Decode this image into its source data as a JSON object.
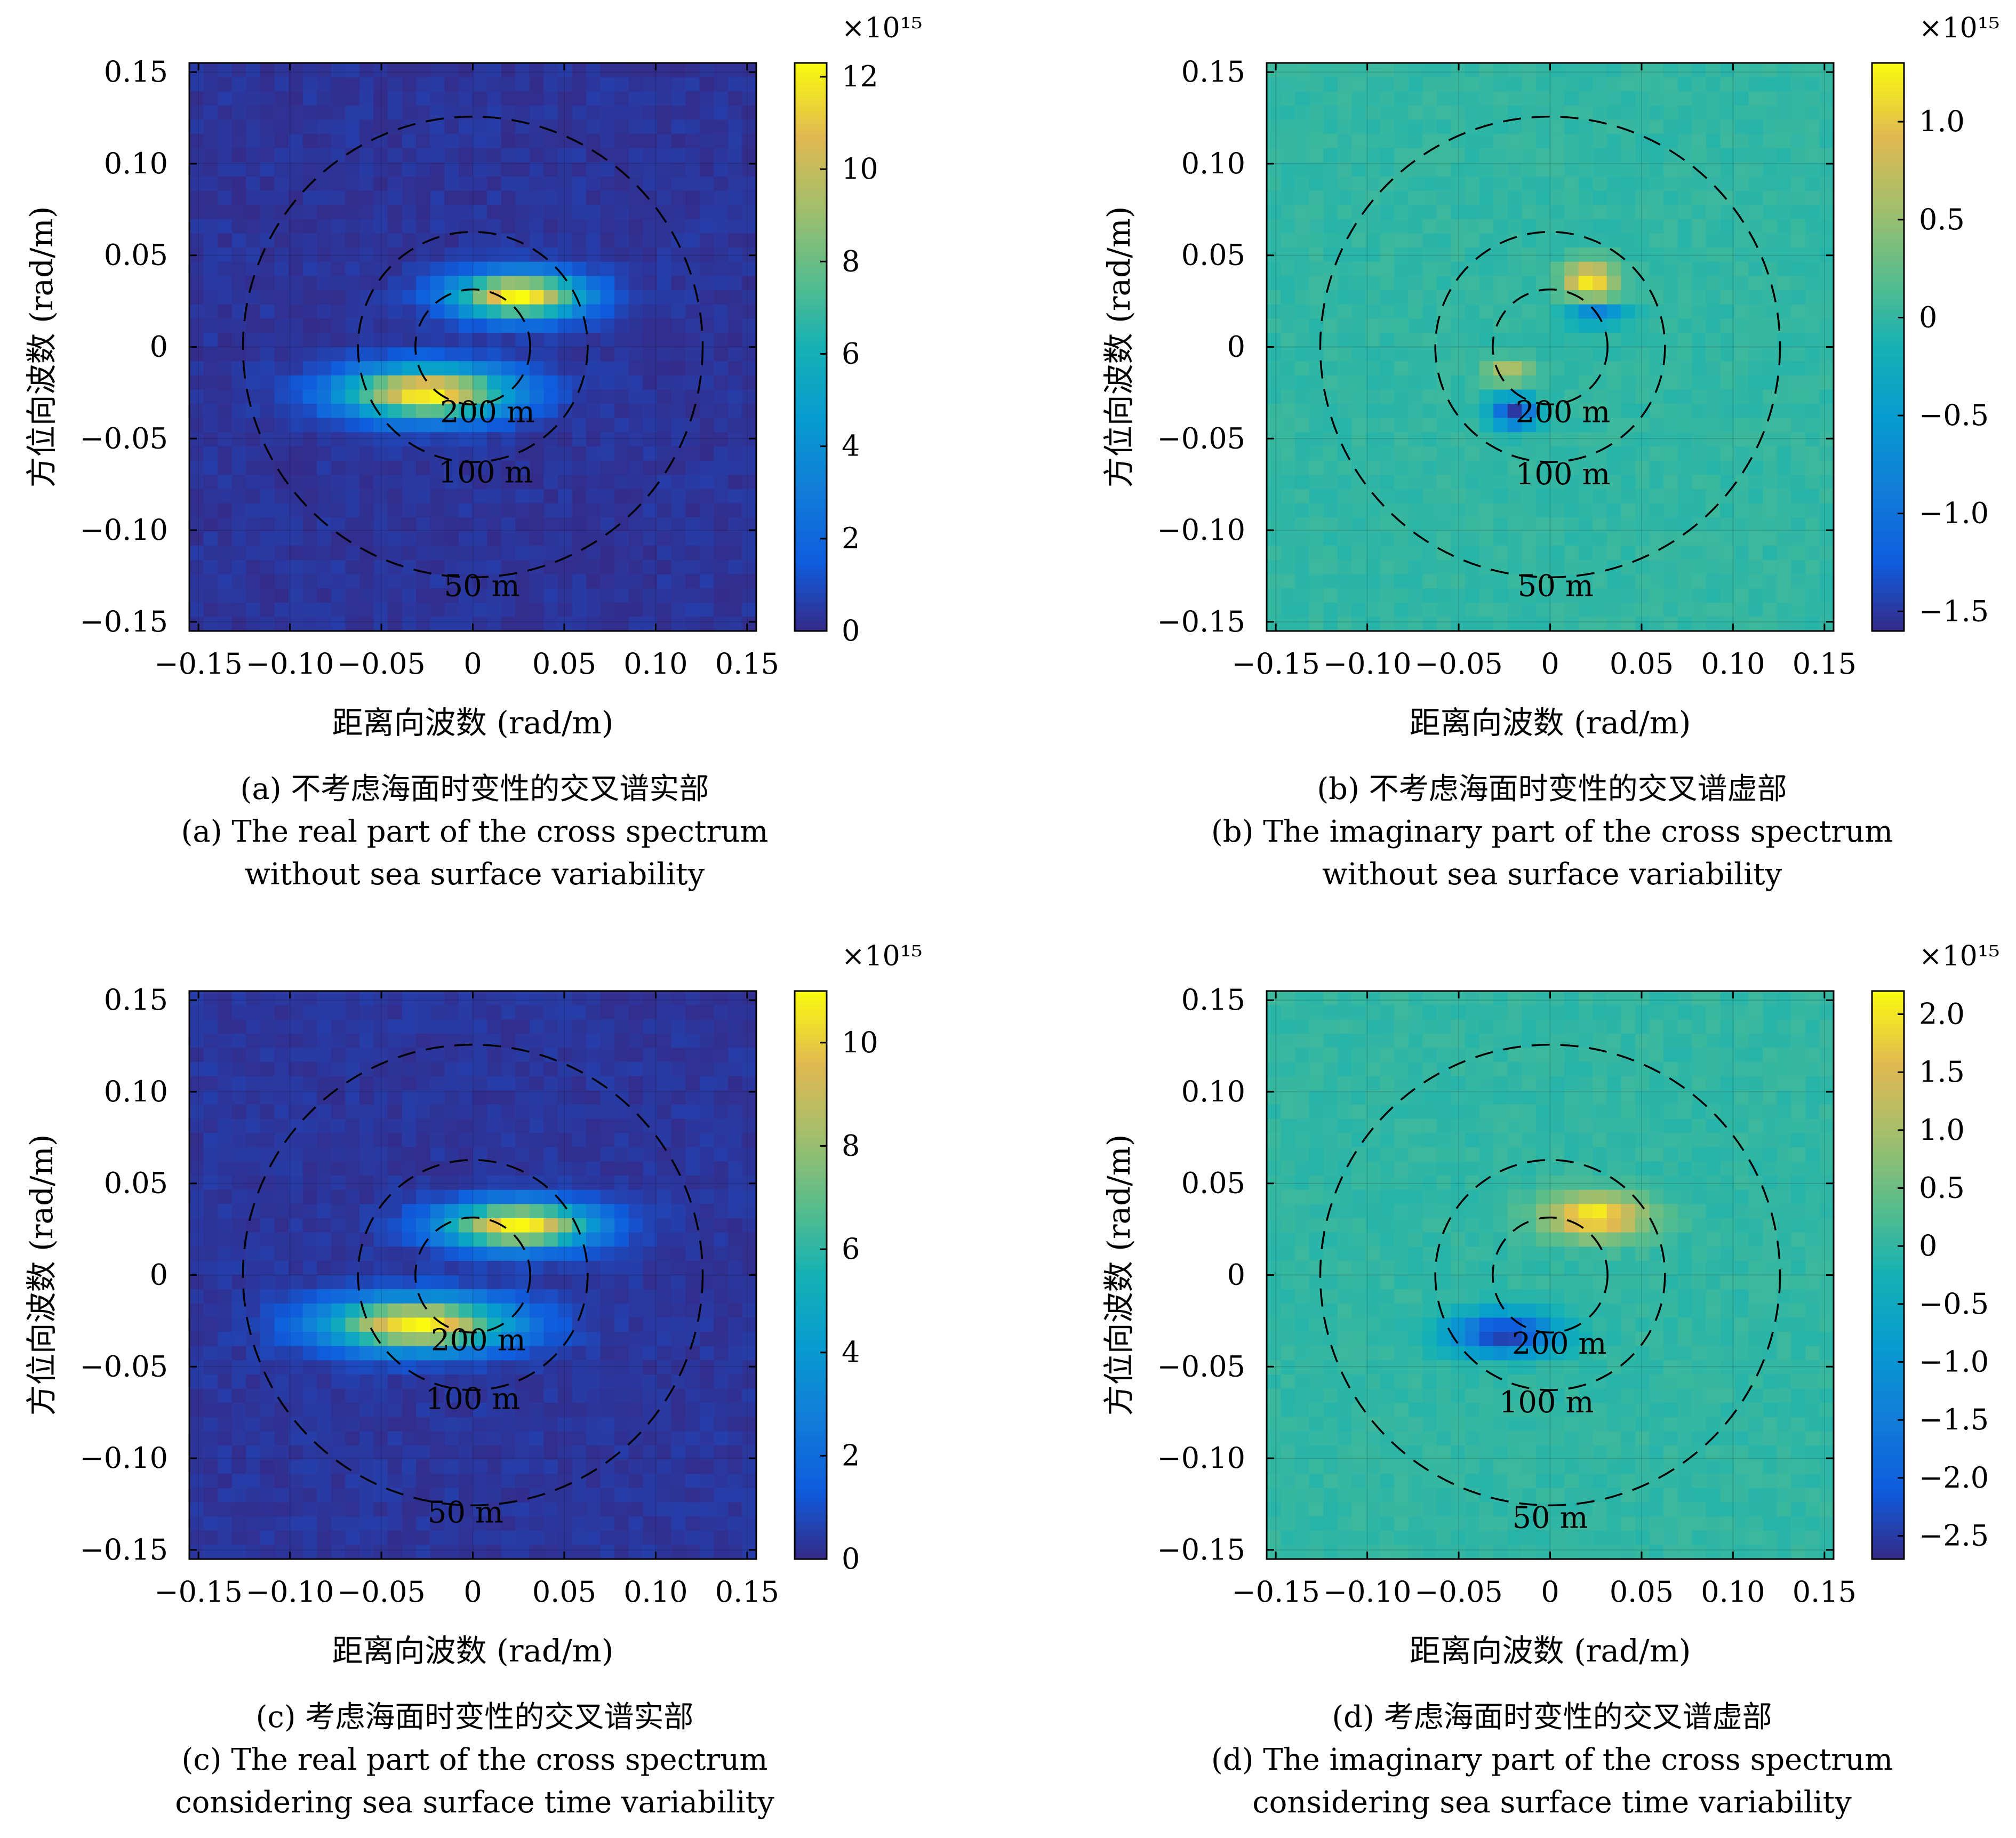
{
  "panels": [
    {
      "id": "a",
      "caption_cn": "(a) 不考虑海面时变性的交叉谱实部",
      "caption_en1": "(a) The real part of the cross spectrum",
      "caption_en2": "without sea surface variability"
    },
    {
      "id": "b",
      "caption_cn": "(b) 不考虑海面时变性的交叉谱虚部",
      "caption_en1": "(b) The imaginary part of the cross spectrum",
      "caption_en2": "without sea surface variability"
    },
    {
      "id": "c",
      "caption_cn": "(c) 考虑海面时变性的交叉谱实部",
      "caption_en1": "(c) The real part of the cross spectrum",
      "caption_en2": "considering sea surface time variability"
    },
    {
      "id": "d",
      "caption_cn": "(d) 考虑海面时变性的交叉谱虚部",
      "caption_en1": "(d) The imaginary part of the cross spectrum",
      "caption_en2": "considering sea surface time variability"
    }
  ],
  "chart_data": [
    {
      "type": "heatmap",
      "xlabel": "距离向波数 (rad/m)",
      "ylabel": "方位向波数 (rad/m)",
      "xlim": [
        -0.155,
        0.155
      ],
      "ylim": [
        -0.155,
        0.155
      ],
      "xticks": [
        -0.15,
        -0.1,
        -0.05,
        0,
        0.05,
        0.1,
        0.15
      ],
      "xtick_labels": [
        "−0.15",
        "−0.10",
        "−0.05",
        "0",
        "0.05",
        "0.10",
        "0.15"
      ],
      "yticks": [
        0.15,
        0.1,
        0.05,
        0,
        -0.05,
        -0.1,
        -0.15
      ],
      "ytick_labels": [
        "0.15",
        "0.10",
        "0.05",
        "0",
        "−0.05",
        "−0.10",
        "−0.15"
      ],
      "colorbar": {
        "min": 0,
        "max": 12.3,
        "exponent": "×10¹⁵",
        "ticks": [
          0,
          2,
          4,
          6,
          8,
          10,
          12
        ],
        "tick_labels": [
          "0",
          "2",
          "4",
          "6",
          "8",
          "10",
          "12"
        ]
      },
      "circles": [
        {
          "label": "200 m",
          "k": 0.0314
        },
        {
          "label": "100 m",
          "k": 0.0628
        },
        {
          "label": "50 m",
          "k": 0.1257
        }
      ],
      "circle_label_pos": [
        [
          0.008,
          -0.041
        ],
        [
          0.007,
          -0.074
        ],
        [
          0.005,
          -0.136
        ]
      ],
      "blobs": [
        {
          "kx": 0.025,
          "ky": 0.028,
          "value": 12.0,
          "sx": 0.035,
          "sy": 0.012
        },
        {
          "kx": -0.025,
          "ky": -0.025,
          "value": 12.0,
          "sx": 0.045,
          "sy": 0.014
        }
      ],
      "background": 0.3
    },
    {
      "type": "heatmap",
      "xlabel": "距离向波数 (rad/m)",
      "ylabel": "方位向波数 (rad/m)",
      "xlim": [
        -0.155,
        0.155
      ],
      "ylim": [
        -0.155,
        0.155
      ],
      "xticks": [
        -0.15,
        -0.1,
        -0.05,
        0,
        0.05,
        0.1,
        0.15
      ],
      "xtick_labels": [
        "−0.15",
        "−0.10",
        "−0.05",
        "0",
        "0.05",
        "0.10",
        "0.15"
      ],
      "yticks": [
        0.15,
        0.1,
        0.05,
        0,
        -0.05,
        -0.1,
        -0.15
      ],
      "ytick_labels": [
        "0.15",
        "0.10",
        "0.05",
        "0",
        "−0.05",
        "−0.10",
        "−0.15"
      ],
      "colorbar": {
        "min": -1.6,
        "max": 1.3,
        "exponent": "×10¹⁵",
        "ticks": [
          1.0,
          0.5,
          0,
          -0.5,
          -1.0,
          -1.5
        ],
        "tick_labels": [
          "1.0",
          "0.5",
          "0",
          "−0.5",
          "−1.0",
          "−1.5"
        ]
      },
      "circles": [
        {
          "label": "200 m",
          "k": 0.0314
        },
        {
          "label": "100 m",
          "k": 0.0628
        },
        {
          "label": "50 m",
          "k": 0.1257
        }
      ],
      "circle_label_pos": [
        [
          0.007,
          -0.041
        ],
        [
          0.007,
          -0.075
        ],
        [
          0.003,
          -0.136
        ]
      ],
      "blobs": [
        {
          "kx": 0.022,
          "ky": 0.036,
          "value": 1.25,
          "sx": 0.014,
          "sy": 0.01
        },
        {
          "kx": -0.022,
          "ky": -0.014,
          "value": 0.8,
          "sx": 0.012,
          "sy": 0.006
        },
        {
          "kx": -0.02,
          "ky": -0.036,
          "value": -1.5,
          "sx": 0.012,
          "sy": 0.008
        },
        {
          "kx": 0.025,
          "ky": 0.018,
          "value": -0.9,
          "sx": 0.015,
          "sy": 0.006
        }
      ],
      "background": 0.0
    },
    {
      "type": "heatmap",
      "xlabel": "距离向波数 (rad/m)",
      "ylabel": "方位向波数 (rad/m)",
      "xlim": [
        -0.155,
        0.155
      ],
      "ylim": [
        -0.155,
        0.155
      ],
      "xticks": [
        -0.15,
        -0.1,
        -0.05,
        0,
        0.05,
        0.1,
        0.15
      ],
      "xtick_labels": [
        "−0.15",
        "−0.10",
        "−0.05",
        "0",
        "0.05",
        "0.10",
        "0.15"
      ],
      "yticks": [
        0.15,
        0.1,
        0.05,
        0,
        -0.05,
        -0.1,
        -0.15
      ],
      "ytick_labels": [
        "0.15",
        "0.10",
        "0.05",
        "0",
        "−0.05",
        "−0.10",
        "−0.15"
      ],
      "colorbar": {
        "min": 0,
        "max": 11.0,
        "exponent": "×10¹⁵",
        "ticks": [
          0,
          2,
          4,
          6,
          8,
          10
        ],
        "tick_labels": [
          "0",
          "2",
          "4",
          "6",
          "8",
          "10"
        ]
      },
      "circles": [
        {
          "label": "200 m",
          "k": 0.0314
        },
        {
          "label": "100 m",
          "k": 0.0628
        },
        {
          "label": "50 m",
          "k": 0.1257
        }
      ],
      "circle_label_pos": [
        [
          0.003,
          -0.041
        ],
        [
          0.0,
          -0.073
        ],
        [
          -0.004,
          -0.135
        ]
      ],
      "blobs": [
        {
          "kx": 0.025,
          "ky": 0.027,
          "value": 10.8,
          "sx": 0.04,
          "sy": 0.012
        },
        {
          "kx": -0.03,
          "ky": -0.027,
          "value": 10.5,
          "sx": 0.05,
          "sy": 0.014
        }
      ],
      "background": 0.3
    },
    {
      "type": "heatmap",
      "xlabel": "距离向波数 (rad/m)",
      "ylabel": "方位向波数 (rad/m)",
      "xlim": [
        -0.155,
        0.155
      ],
      "ylim": [
        -0.155,
        0.155
      ],
      "xticks": [
        -0.15,
        -0.1,
        -0.05,
        0,
        0.05,
        0.1,
        0.15
      ],
      "xtick_labels": [
        "−0.15",
        "−0.10",
        "−0.05",
        "0",
        "0.05",
        "0.10",
        "0.15"
      ],
      "yticks": [
        0.15,
        0.1,
        0.05,
        0,
        -0.05,
        -0.1,
        -0.15
      ],
      "ytick_labels": [
        "0.15",
        "0.10",
        "0.05",
        "0",
        "−0.05",
        "−0.10",
        "−0.15"
      ],
      "colorbar": {
        "min": -2.7,
        "max": 2.2,
        "exponent": "×10¹⁵",
        "ticks": [
          2.0,
          1.5,
          1.0,
          0.5,
          0,
          -0.5,
          -1.0,
          -1.5,
          -2.0,
          -2.5
        ],
        "tick_labels": [
          "2.0",
          "1.5",
          "1.0",
          "0.5",
          "0",
          "−0.5",
          "−1.0",
          "−1.5",
          "−2.0",
          "−2.5"
        ]
      },
      "circles": [
        {
          "label": "200 m",
          "k": 0.0314
        },
        {
          "label": "100 m",
          "k": 0.0628
        },
        {
          "label": "50 m",
          "k": 0.1257
        }
      ],
      "circle_label_pos": [
        [
          0.005,
          -0.043
        ],
        [
          -0.002,
          -0.075
        ],
        [
          0.0,
          -0.138
        ]
      ],
      "blobs": [
        {
          "kx": 0.025,
          "ky": 0.032,
          "value": 2.1,
          "sx": 0.028,
          "sy": 0.012
        },
        {
          "kx": -0.025,
          "ky": -0.032,
          "value": -2.6,
          "sx": 0.028,
          "sy": 0.011
        }
      ],
      "background": 0.0
    }
  ]
}
